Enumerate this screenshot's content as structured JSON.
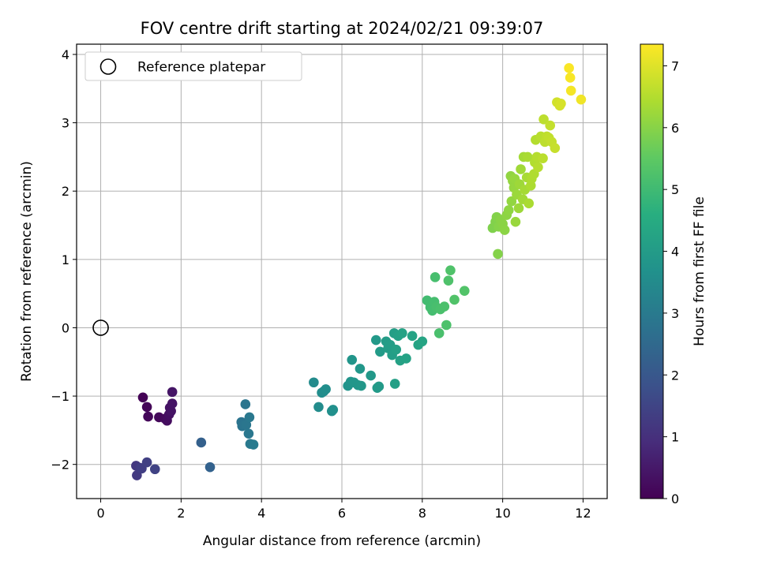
{
  "chart_data": {
    "type": "scatter",
    "title": "FOV centre drift starting at 2024/02/21 09:39:07",
    "xlabel": "Angular distance from reference (arcmin)",
    "ylabel": "Rotation from reference (arcmin)",
    "xlim": [
      -0.6,
      12.6
    ],
    "ylim": [
      -2.5,
      4.15
    ],
    "x_ticks": [
      0,
      2,
      4,
      6,
      8,
      10,
      12
    ],
    "y_ticks": [
      -2,
      -1,
      0,
      1,
      2,
      3,
      4
    ],
    "grid": true,
    "legend": {
      "placement": "top-left",
      "entries": [
        "Reference platepar"
      ]
    },
    "reference_point": {
      "x": 0,
      "y": 0,
      "label": "Reference platepar"
    },
    "colorbar": {
      "label": "Hours from first FF file",
      "colormap": "viridis",
      "range": [
        0,
        7.35
      ],
      "ticks": [
        0,
        1,
        2,
        3,
        4,
        5,
        6,
        7
      ]
    },
    "points": [
      {
        "x": 1.05,
        "y": -1.02,
        "h": 0.05
      },
      {
        "x": 1.15,
        "y": -1.16,
        "h": 0.1
      },
      {
        "x": 1.18,
        "y": -1.3,
        "h": 0.12
      },
      {
        "x": 1.45,
        "y": -1.31,
        "h": 0.15
      },
      {
        "x": 1.6,
        "y": -1.33,
        "h": 0.2
      },
      {
        "x": 1.65,
        "y": -1.36,
        "h": 0.25
      },
      {
        "x": 1.7,
        "y": -1.27,
        "h": 0.3
      },
      {
        "x": 1.72,
        "y": -1.17,
        "h": 0.35
      },
      {
        "x": 1.75,
        "y": -1.22,
        "h": 0.38
      },
      {
        "x": 1.78,
        "y": -1.11,
        "h": 0.4
      },
      {
        "x": 1.78,
        "y": -0.94,
        "h": 0.42
      },
      {
        "x": 0.88,
        "y": -2.02,
        "h": 1.2
      },
      {
        "x": 0.9,
        "y": -2.16,
        "h": 1.25
      },
      {
        "x": 0.98,
        "y": -2.05,
        "h": 1.3
      },
      {
        "x": 1.02,
        "y": -2.06,
        "h": 1.35
      },
      {
        "x": 1.15,
        "y": -1.97,
        "h": 1.4
      },
      {
        "x": 1.35,
        "y": -2.07,
        "h": 1.45
      },
      {
        "x": 2.5,
        "y": -1.68,
        "h": 2.25
      },
      {
        "x": 2.72,
        "y": -2.04,
        "h": 2.3
      },
      {
        "x": 3.5,
        "y": -1.38,
        "h": 2.8
      },
      {
        "x": 3.52,
        "y": -1.44,
        "h": 2.82
      },
      {
        "x": 3.6,
        "y": -1.12,
        "h": 2.85
      },
      {
        "x": 3.62,
        "y": -1.42,
        "h": 2.88
      },
      {
        "x": 3.68,
        "y": -1.55,
        "h": 2.9
      },
      {
        "x": 3.7,
        "y": -1.31,
        "h": 2.93
      },
      {
        "x": 3.72,
        "y": -1.7,
        "h": 2.95
      },
      {
        "x": 3.8,
        "y": -1.71,
        "h": 2.98
      },
      {
        "x": 5.3,
        "y": -0.8,
        "h": 3.5
      },
      {
        "x": 5.42,
        "y": -1.16,
        "h": 3.52
      },
      {
        "x": 5.5,
        "y": -0.95,
        "h": 3.55
      },
      {
        "x": 5.55,
        "y": -0.93,
        "h": 3.57
      },
      {
        "x": 5.6,
        "y": -0.9,
        "h": 3.6
      },
      {
        "x": 5.75,
        "y": -1.22,
        "h": 3.62
      },
      {
        "x": 5.78,
        "y": -1.2,
        "h": 3.64
      },
      {
        "x": 6.15,
        "y": -0.85,
        "h": 3.75
      },
      {
        "x": 6.22,
        "y": -0.79,
        "h": 3.77
      },
      {
        "x": 6.25,
        "y": -0.47,
        "h": 3.8
      },
      {
        "x": 6.3,
        "y": -0.8,
        "h": 3.82
      },
      {
        "x": 6.4,
        "y": -0.84,
        "h": 3.84
      },
      {
        "x": 6.45,
        "y": -0.6,
        "h": 3.86
      },
      {
        "x": 6.48,
        "y": -0.85,
        "h": 3.88
      },
      {
        "x": 6.72,
        "y": -0.7,
        "h": 3.9
      },
      {
        "x": 6.85,
        "y": -0.18,
        "h": 3.93
      },
      {
        "x": 6.88,
        "y": -0.88,
        "h": 3.95
      },
      {
        "x": 6.92,
        "y": -0.86,
        "h": 3.97
      },
      {
        "x": 6.95,
        "y": -0.35,
        "h": 4.0
      },
      {
        "x": 7.1,
        "y": -0.2,
        "h": 4.02
      },
      {
        "x": 7.15,
        "y": -0.3,
        "h": 4.04
      },
      {
        "x": 7.2,
        "y": -0.25,
        "h": 4.06
      },
      {
        "x": 7.25,
        "y": -0.4,
        "h": 4.08
      },
      {
        "x": 7.3,
        "y": -0.08,
        "h": 4.1
      },
      {
        "x": 7.32,
        "y": -0.82,
        "h": 4.12
      },
      {
        "x": 7.35,
        "y": -0.32,
        "h": 4.14
      },
      {
        "x": 7.4,
        "y": -0.12,
        "h": 4.16
      },
      {
        "x": 7.45,
        "y": -0.48,
        "h": 4.18
      },
      {
        "x": 7.5,
        "y": -0.08,
        "h": 4.2
      },
      {
        "x": 7.6,
        "y": -0.45,
        "h": 4.22
      },
      {
        "x": 7.75,
        "y": -0.12,
        "h": 4.24
      },
      {
        "x": 7.9,
        "y": -0.25,
        "h": 4.26
      },
      {
        "x": 8.0,
        "y": -0.2,
        "h": 4.28
      },
      {
        "x": 8.12,
        "y": 0.4,
        "h": 5.05
      },
      {
        "x": 8.2,
        "y": 0.3,
        "h": 5.07
      },
      {
        "x": 8.25,
        "y": 0.25,
        "h": 5.09
      },
      {
        "x": 8.3,
        "y": 0.38,
        "h": 5.11
      },
      {
        "x": 8.32,
        "y": 0.74,
        "h": 5.13
      },
      {
        "x": 8.35,
        "y": 0.3,
        "h": 5.15
      },
      {
        "x": 8.42,
        "y": -0.08,
        "h": 5.17
      },
      {
        "x": 8.45,
        "y": 0.27,
        "h": 5.19
      },
      {
        "x": 8.55,
        "y": 0.31,
        "h": 5.21
      },
      {
        "x": 8.6,
        "y": 0.04,
        "h": 5.23
      },
      {
        "x": 8.65,
        "y": 0.69,
        "h": 5.25
      },
      {
        "x": 8.7,
        "y": 0.84,
        "h": 5.27
      },
      {
        "x": 8.8,
        "y": 0.41,
        "h": 5.29
      },
      {
        "x": 9.05,
        "y": 0.54,
        "h": 5.31
      },
      {
        "x": 9.75,
        "y": 1.46,
        "h": 5.9
      },
      {
        "x": 9.82,
        "y": 1.55,
        "h": 5.92
      },
      {
        "x": 9.85,
        "y": 1.62,
        "h": 5.94
      },
      {
        "x": 9.88,
        "y": 1.08,
        "h": 5.96
      },
      {
        "x": 9.9,
        "y": 1.48,
        "h": 5.98
      },
      {
        "x": 9.95,
        "y": 1.58,
        "h": 6.0
      },
      {
        "x": 10.0,
        "y": 1.52,
        "h": 6.02
      },
      {
        "x": 10.05,
        "y": 1.43,
        "h": 6.04
      },
      {
        "x": 10.1,
        "y": 1.65,
        "h": 6.06
      },
      {
        "x": 10.15,
        "y": 1.72,
        "h": 6.08
      },
      {
        "x": 10.2,
        "y": 2.22,
        "h": 6.1
      },
      {
        "x": 10.22,
        "y": 1.85,
        "h": 6.12
      },
      {
        "x": 10.25,
        "y": 2.15,
        "h": 6.14
      },
      {
        "x": 10.28,
        "y": 2.05,
        "h": 6.16
      },
      {
        "x": 10.3,
        "y": 2.18,
        "h": 6.18
      },
      {
        "x": 10.32,
        "y": 1.55,
        "h": 6.2
      },
      {
        "x": 10.35,
        "y": 1.95,
        "h": 6.22
      },
      {
        "x": 10.4,
        "y": 1.75,
        "h": 6.24
      },
      {
        "x": 10.42,
        "y": 2.1,
        "h": 6.26
      },
      {
        "x": 10.45,
        "y": 2.32,
        "h": 6.28
      },
      {
        "x": 10.5,
        "y": 1.88,
        "h": 6.3
      },
      {
        "x": 10.52,
        "y": 2.5,
        "h": 6.32
      },
      {
        "x": 10.55,
        "y": 2.02,
        "h": 6.34
      },
      {
        "x": 10.6,
        "y": 2.2,
        "h": 6.36
      },
      {
        "x": 10.62,
        "y": 2.5,
        "h": 6.38
      },
      {
        "x": 10.65,
        "y": 1.82,
        "h": 6.4
      },
      {
        "x": 10.7,
        "y": 2.08,
        "h": 6.42
      },
      {
        "x": 10.72,
        "y": 2.18,
        "h": 6.44
      },
      {
        "x": 10.78,
        "y": 2.25,
        "h": 6.46
      },
      {
        "x": 10.8,
        "y": 2.42,
        "h": 6.48
      },
      {
        "x": 10.82,
        "y": 2.75,
        "h": 6.5
      },
      {
        "x": 10.85,
        "y": 2.5,
        "h": 6.52
      },
      {
        "x": 10.88,
        "y": 2.35,
        "h": 6.54
      },
      {
        "x": 10.95,
        "y": 2.8,
        "h": 6.56
      },
      {
        "x": 11.0,
        "y": 2.48,
        "h": 6.58
      },
      {
        "x": 11.02,
        "y": 3.05,
        "h": 6.6
      },
      {
        "x": 11.05,
        "y": 2.72,
        "h": 6.62
      },
      {
        "x": 11.1,
        "y": 2.8,
        "h": 6.64
      },
      {
        "x": 11.15,
        "y": 2.78,
        "h": 6.66
      },
      {
        "x": 11.18,
        "y": 2.96,
        "h": 6.68
      },
      {
        "x": 11.22,
        "y": 2.72,
        "h": 6.7
      },
      {
        "x": 11.3,
        "y": 2.63,
        "h": 6.72
      },
      {
        "x": 11.35,
        "y": 3.3,
        "h": 6.85
      },
      {
        "x": 11.42,
        "y": 3.25,
        "h": 6.88
      },
      {
        "x": 11.45,
        "y": 3.28,
        "h": 6.9
      },
      {
        "x": 11.65,
        "y": 3.8,
        "h": 7.3
      },
      {
        "x": 11.68,
        "y": 3.66,
        "h": 7.28
      },
      {
        "x": 11.7,
        "y": 3.47,
        "h": 7.25
      },
      {
        "x": 11.95,
        "y": 3.34,
        "h": 7.2
      }
    ]
  }
}
